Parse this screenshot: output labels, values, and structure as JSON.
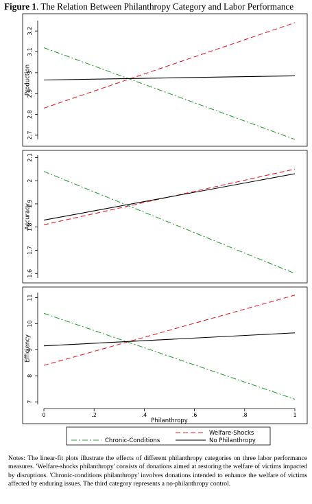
{
  "figure": {
    "label": "Figure 1",
    "title_text": ". The Relation Between Philanthropy Category and Labor Performance"
  },
  "chart_data": [
    {
      "type": "line",
      "ylabel": "Production",
      "xlabel": "",
      "x": [
        0,
        1
      ],
      "xlim": [
        0,
        1
      ],
      "ylim": [
        2.68,
        3.25
      ],
      "yticks": [
        2.7,
        2.8,
        2.9,
        3,
        3.1,
        3.2
      ],
      "ytick_labels": [
        "2.7",
        "2.8",
        "2.9",
        "3",
        "3.1",
        "3.2"
      ],
      "grid": false,
      "series": [
        {
          "name": "Welfare-Shocks",
          "values": [
            2.83,
            3.24
          ],
          "color": "#e8202a",
          "dash": "long-dash"
        },
        {
          "name": "Chronic-Conditions",
          "values": [
            3.12,
            2.68
          ],
          "color": "#2e9e3a",
          "dash": "dash-dot"
        },
        {
          "name": "No Philanthropy",
          "values": [
            2.965,
            2.985
          ],
          "color": "#000000",
          "dash": "solid"
        }
      ]
    },
    {
      "type": "line",
      "ylabel": "Accuracy",
      "xlabel": "",
      "x": [
        0,
        1
      ],
      "xlim": [
        0,
        1
      ],
      "ylim": [
        1.58,
        2.11
      ],
      "yticks": [
        1.6,
        1.7,
        1.8,
        1.9,
        2,
        2.1
      ],
      "ytick_labels": [
        "1.6",
        "1.7",
        "1.8",
        "1.9",
        "2",
        "2.1"
      ],
      "grid": false,
      "series": [
        {
          "name": "Welfare-Shocks",
          "values": [
            1.81,
            2.05
          ],
          "color": "#e8202a",
          "dash": "long-dash"
        },
        {
          "name": "Chronic-Conditions",
          "values": [
            2.04,
            1.6
          ],
          "color": "#2e9e3a",
          "dash": "dash-dot"
        },
        {
          "name": "No Philanthropy",
          "values": [
            1.83,
            2.03
          ],
          "color": "#000000",
          "dash": "solid"
        }
      ]
    },
    {
      "type": "line",
      "ylabel": "Efficiency",
      "xlabel": "Philanthropy",
      "x": [
        0,
        1
      ],
      "xlim": [
        0,
        1
      ],
      "ylim": [
        6.9,
        11.2
      ],
      "yticks": [
        7,
        8,
        9,
        10,
        11
      ],
      "ytick_labels": [
        "7",
        "8",
        "9",
        "10",
        "11"
      ],
      "xticks": [
        0,
        0.2,
        0.4,
        0.6,
        0.8,
        1
      ],
      "xtick_labels": [
        "0",
        ".2",
        ".4",
        ".6",
        ".8",
        "1"
      ],
      "grid": false,
      "series": [
        {
          "name": "Welfare-Shocks",
          "values": [
            8.4,
            11.1
          ],
          "color": "#e8202a",
          "dash": "long-dash"
        },
        {
          "name": "Chronic-Conditions",
          "values": [
            10.4,
            7.1
          ],
          "color": "#2e9e3a",
          "dash": "dash-dot"
        },
        {
          "name": "No Philanthropy",
          "values": [
            9.15,
            9.65
          ],
          "color": "#000000",
          "dash": "solid"
        }
      ]
    }
  ],
  "legend": {
    "placement": "bottom",
    "entries": [
      {
        "label": "Welfare-Shocks",
        "color": "#e8202a",
        "dash": "long-dash"
      },
      {
        "label": "Chronic-Conditions",
        "color": "#2e9e3a",
        "dash": "dash-dot"
      },
      {
        "label": "No Philanthropy",
        "color": "#000000",
        "dash": "solid"
      }
    ]
  },
  "notes": "Notes: The linear-fit plots illustrate the effects of different philanthropy categories on three labor performance measures. 'Welfare-shocks philanthropy' consists of donations aimed at restoring the welfare of victims impacted by disruptions. 'Chronic-conditions philanthropy' involves donations intended to enhance the welfare of victims affected by enduring issues. The third category represents a no-philanthropy control."
}
